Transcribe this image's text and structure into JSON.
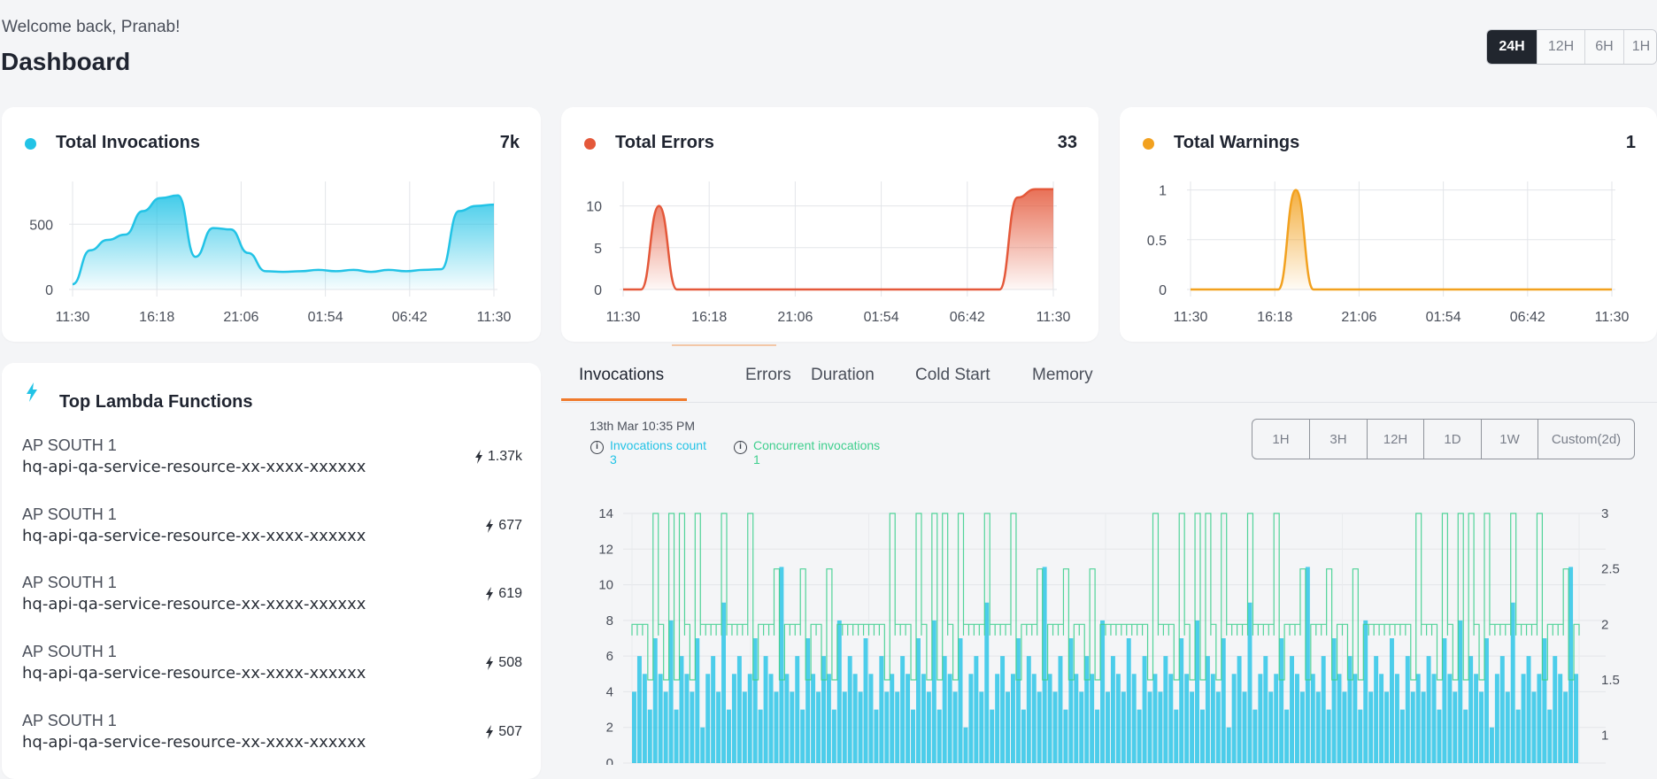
{
  "header": {
    "welcome": "Welcome back, Pranab!",
    "title": "Dashboard",
    "ranges": [
      "24H",
      "12H",
      "6H",
      "1H"
    ],
    "active_range": "24H"
  },
  "colors": {
    "invocations": "#22c3e6",
    "errors": "#e4583a",
    "warnings": "#f2a11f",
    "concurrent": "#3fcf8e",
    "tab_accent": "#f07a2b"
  },
  "cards": [
    {
      "title": "Total Invocations",
      "value": "7k",
      "icon": "dot-cyan",
      "chart_data": {
        "type": "area",
        "x_ticks": [
          "11:30",
          "16:18",
          "21:06",
          "01:54",
          "06:42",
          "11:30"
        ],
        "y_ticks": [
          "0",
          "500"
        ],
        "ylim": [
          0,
          800
        ],
        "values": [
          40,
          300,
          380,
          420,
          600,
          700,
          720,
          250,
          470,
          460,
          280,
          140,
          135,
          140,
          150,
          140,
          150,
          135,
          150,
          140,
          150,
          155,
          600,
          640,
          650
        ]
      }
    },
    {
      "title": "Total Errors",
      "value": "33",
      "icon": "dot-red",
      "chart_data": {
        "type": "area",
        "x_ticks": [
          "11:30",
          "16:18",
          "21:06",
          "01:54",
          "06:42",
          "11:30"
        ],
        "y_ticks": [
          "0",
          "5",
          "10"
        ],
        "ylim": [
          0,
          12.5
        ],
        "values": [
          0,
          0,
          10,
          0,
          0,
          0,
          0,
          0,
          0,
          0,
          0,
          0,
          0,
          0,
          0,
          0,
          0,
          0,
          0,
          0,
          0,
          0,
          11,
          12,
          12
        ]
      }
    },
    {
      "title": "Total Warnings",
      "value": "1",
      "icon": "dot-amber",
      "chart_data": {
        "type": "area",
        "x_ticks": [
          "11:30",
          "16:18",
          "21:06",
          "01:54",
          "06:42",
          "11:30"
        ],
        "y_ticks": [
          "0",
          "0.5",
          "1"
        ],
        "ylim": [
          0,
          1.05
        ],
        "values": [
          0,
          0,
          0,
          0,
          0,
          0,
          1,
          0,
          0,
          0,
          0,
          0,
          0,
          0,
          0,
          0,
          0,
          0,
          0,
          0,
          0,
          0,
          0,
          0,
          0
        ]
      }
    }
  ],
  "lambda": {
    "title": "Top Lambda Functions",
    "items": [
      {
        "region": "AP SOUTH 1",
        "name": "hq-api-qa-service-resource-xx-xxxx-xxxxxx",
        "count": "1.37k"
      },
      {
        "region": "AP SOUTH 1",
        "name": "hq-api-qa-service-resource-xx-xxxx-xxxxxx",
        "count": "677"
      },
      {
        "region": "AP SOUTH 1",
        "name": "hq-api-qa-service-resource-xx-xxxx-xxxxxx",
        "count": "619"
      },
      {
        "region": "AP SOUTH 1",
        "name": "hq-api-qa-service-resource-xx-xxxx-xxxxxx",
        "count": "508"
      },
      {
        "region": "AP SOUTH 1",
        "name": "hq-api-qa-service-resource-xx-xxxx-xxxxxx",
        "count": "507"
      }
    ]
  },
  "metrics": {
    "tabs": [
      "Invocations",
      "Errors",
      "Duration",
      "Cold Start",
      "Memory"
    ],
    "active_tab": "Invocations",
    "timestamp": "13th Mar 10:35 PM",
    "legend": [
      {
        "label": "Invocations count",
        "value": "3"
      },
      {
        "label": "Concurrent invocations",
        "value": "1"
      }
    ],
    "ranges": [
      "1H",
      "3H",
      "12H",
      "1D",
      "1W",
      "Custom(2d)"
    ],
    "chart_data": {
      "type": "bar",
      "title": "",
      "y_left_ticks": [
        "0",
        "2",
        "4",
        "6",
        "8",
        "10",
        "12",
        "14"
      ],
      "y_right_ticks": [
        "1",
        "1.5",
        "2",
        "2.5",
        "3"
      ],
      "ylim_left": [
        0,
        14
      ],
      "ylim_right": [
        0.75,
        3
      ],
      "series": [
        {
          "name": "Invocations count",
          "pattern": [
            4,
            6,
            5,
            3,
            7,
            5,
            4,
            8,
            3,
            6,
            5,
            4,
            7,
            2,
            5,
            6,
            4,
            9,
            3,
            5,
            6,
            4,
            5,
            7,
            3,
            6,
            5,
            4,
            11,
            5,
            4,
            6,
            3,
            7,
            5,
            4,
            6,
            5,
            3,
            8,
            4,
            6,
            5,
            4,
            7,
            5,
            3,
            6,
            4,
            5
          ]
        },
        {
          "name": "Concurrent invocations",
          "pattern": [
            2,
            2,
            1.5,
            2,
            3,
            2,
            1.5,
            2,
            2,
            2.5,
            2,
            1.5,
            2,
            3,
            2,
            2,
            1.5,
            2,
            2,
            3,
            2,
            1.5,
            2,
            2,
            2.5,
            2,
            2,
            1.5,
            3,
            2,
            2,
            1.5,
            2,
            2,
            3,
            2,
            1.5,
            2,
            2,
            2.5,
            2,
            2,
            1.5,
            3,
            2,
            2,
            1.5,
            2,
            2,
            3
          ]
        }
      ]
    }
  }
}
